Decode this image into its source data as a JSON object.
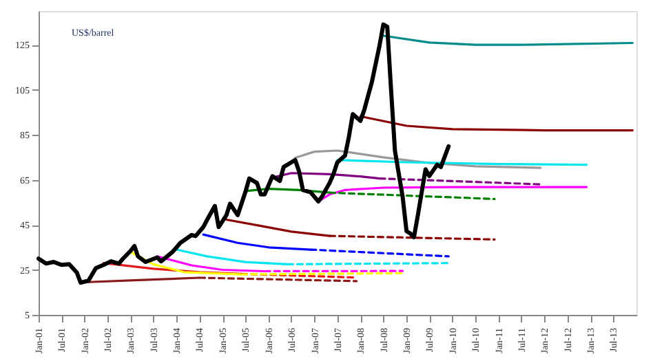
{
  "chart_data": {
    "type": "line",
    "annotations": [
      "US$/barrel"
    ],
    "xlim": [
      "2001-01",
      "2014-01"
    ],
    "ylim": [
      5,
      140
    ],
    "xticks": [
      {
        "value": "2001-01",
        "label": "Jan-01"
      },
      {
        "value": "2001-07",
        "label": "Jul-01"
      },
      {
        "value": "2002-01",
        "label": "Jan-02"
      },
      {
        "value": "2002-07",
        "label": "Jul-02"
      },
      {
        "value": "2003-01",
        "label": "Jan-03"
      },
      {
        "value": "2003-07",
        "label": "Jul-03"
      },
      {
        "value": "2004-01",
        "label": "Jan-04"
      },
      {
        "value": "2004-07",
        "label": "Jul-04"
      },
      {
        "value": "2005-01",
        "label": "Jan-05"
      },
      {
        "value": "2005-07",
        "label": "Jul-05"
      },
      {
        "value": "2006-01",
        "label": "Jan-06"
      },
      {
        "value": "2006-07",
        "label": "Jul-06"
      },
      {
        "value": "2007-01",
        "label": "Jan-07"
      },
      {
        "value": "2007-07",
        "label": "Jul-07"
      },
      {
        "value": "2008-01",
        "label": "Jan-08"
      },
      {
        "value": "2008-07",
        "label": "Jul-08"
      },
      {
        "value": "2009-01",
        "label": "Jan-09"
      },
      {
        "value": "2009-07",
        "label": "Jul-09"
      },
      {
        "value": "2010-01",
        "label": "Jan-10"
      },
      {
        "value": "2010-07",
        "label": "Jul-10"
      },
      {
        "value": "2011-01",
        "label": "Jan-11"
      },
      {
        "value": "2011-07",
        "label": "Jul-11"
      },
      {
        "value": "2012-01",
        "label": "Jan-12"
      },
      {
        "value": "2012-07",
        "label": "Jul-12"
      },
      {
        "value": "2013-01",
        "label": "Jan-13"
      },
      {
        "value": "2013-07",
        "label": "Jul-13"
      }
    ],
    "yticks": [
      5,
      25,
      45,
      65,
      85,
      105,
      125
    ],
    "grid": false,
    "marker": "none",
    "series": [
      {
        "color": "#8b1a1a",
        "x": [
          "2002-01",
          "2003-01",
          "2004-07"
        ],
        "values": [
          19.5,
          20.3,
          21.5
        ]
      },
      {
        "color": "#e31a1c",
        "x": [
          "2002-06",
          "2003-07",
          "2004-07",
          "2005-06"
        ],
        "values": [
          28,
          25.5,
          24,
          23.2
        ]
      },
      {
        "color": "#ffff00",
        "x": [
          "2003-01",
          "2003-07",
          "2004-03",
          "2005-06"
        ],
        "values": [
          33,
          27.5,
          24,
          23
        ]
      },
      {
        "color": "#ff00ff",
        "x": [
          "2003-08",
          "2004-05",
          "2005-01",
          "2005-12"
        ],
        "values": [
          31,
          27,
          25,
          24.4
        ]
      },
      {
        "color": "#00e5ee",
        "x": [
          "2004-01",
          "2004-09",
          "2005-07",
          "2006-06"
        ],
        "values": [
          34,
          31,
          28.5,
          27.5
        ]
      },
      {
        "color": "#0000ff",
        "x": [
          "2004-08",
          "2005-05",
          "2006-01",
          "2006-12"
        ],
        "values": [
          40.7,
          37,
          35,
          34
        ]
      },
      {
        "color": "#8b0000",
        "x": [
          "2005-02",
          "2005-11",
          "2006-07",
          "2007-05"
        ],
        "values": [
          47.3,
          44.5,
          42,
          40.1
        ]
      },
      {
        "color": "#008000",
        "x": [
          "2005-07",
          "2006-01",
          "2006-09",
          "2007-05"
        ],
        "values": [
          60,
          61,
          60.5,
          59.3
        ]
      },
      {
        "color": "#800080",
        "x": [
          "2006-02",
          "2006-07",
          "2007-05",
          "2008-01",
          "2008-06"
        ],
        "values": [
          66,
          68,
          67.5,
          66.5,
          65.6
        ]
      },
      {
        "color": "#999999",
        "x": [
          "2006-08",
          "2007-01",
          "2007-07",
          "2008-07",
          "2009-07",
          "2010-07",
          "2011-12"
        ],
        "values": [
          74.8,
          77.5,
          78,
          75,
          72.5,
          71,
          70.3
        ]
      },
      {
        "color": "#ff00ff",
        "x": [
          "2007-02",
          "2007-05",
          "2007-09",
          "2008-07",
          "2010-01",
          "2012-12"
        ],
        "values": [
          55.4,
          58.5,
          60.5,
          61.5,
          61.8,
          61.8
        ]
      },
      {
        "color": "#00e5ee",
        "x": [
          "2007-07",
          "2009-01",
          "2011-01",
          "2012-12"
        ],
        "values": [
          73.8,
          72.8,
          72,
          71.7
        ]
      },
      {
        "color": "#8b0000",
        "x": [
          "2008-01",
          "2009-01",
          "2010-01",
          "2012-01",
          "2013-12"
        ],
        "values": [
          93.2,
          89,
          87.5,
          87,
          87
        ]
      },
      {
        "color": "#008b8b",
        "x": [
          "2008-07",
          "2009-07",
          "2010-07",
          "2011-07",
          "2013-12"
        ],
        "values": [
          129,
          126,
          125,
          125,
          125.8
        ]
      },
      {
        "color": "#8b1a1a",
        "line_style": "dashed",
        "x": [
          "2004-07",
          "2007-12"
        ],
        "values": [
          21.5,
          20
        ]
      },
      {
        "color": "#e31a1c",
        "line_style": "dashed",
        "x": [
          "2005-06",
          "2007-12"
        ],
        "values": [
          23.2,
          21.6
        ]
      },
      {
        "color": "#ffff00",
        "line_style": "dashed",
        "x": [
          "2005-06",
          "2008-12"
        ],
        "values": [
          23,
          23.5
        ]
      },
      {
        "color": "#ff00ff",
        "line_style": "dashed",
        "x": [
          "2005-12",
          "2008-12"
        ],
        "values": [
          24.4,
          24.5
        ]
      },
      {
        "color": "#00e5ee",
        "line_style": "dashed",
        "x": [
          "2006-06",
          "2009-12"
        ],
        "values": [
          27.5,
          28
        ]
      },
      {
        "color": "#0000ff",
        "line_style": "dashed",
        "x": [
          "2006-12",
          "2009-12"
        ],
        "values": [
          34,
          31
        ]
      },
      {
        "color": "#8b0000",
        "line_style": "dashed",
        "x": [
          "2007-05",
          "2010-12"
        ],
        "values": [
          40.1,
          38.5
        ]
      },
      {
        "color": "#008000",
        "line_style": "dashed",
        "x": [
          "2007-05",
          "2010-12"
        ],
        "values": [
          59.3,
          56.5
        ]
      },
      {
        "color": "#800080",
        "line_style": "dashed",
        "x": [
          "2008-06",
          "2011-12"
        ],
        "values": [
          65.6,
          63
        ]
      },
      {
        "color": "#000000",
        "x": [
          "2001-01",
          "2001-03",
          "2001-05",
          "2001-07",
          "2001-09",
          "2001-11",
          "2001-12",
          "2002-02",
          "2002-04",
          "2002-06",
          "2002-08",
          "2002-10",
          "2002-11",
          "2003-01",
          "2003-02",
          "2003-03",
          "2003-05",
          "2003-08",
          "2003-09",
          "2003-12",
          "2004-02",
          "2004-05",
          "2004-06",
          "2004-08",
          "2004-09",
          "2004-11",
          "2004-12",
          "2005-02",
          "2005-03",
          "2005-05",
          "2005-07",
          "2005-08",
          "2005-10",
          "2005-11",
          "2005-12",
          "2006-02",
          "2006-04",
          "2006-05",
          "2006-08",
          "2006-09",
          "2006-10",
          "2006-12",
          "2007-02",
          "2007-03",
          "2007-05",
          "2007-06",
          "2007-07",
          "2007-09",
          "2007-10",
          "2007-11",
          "2008-01",
          "2008-02",
          "2008-04",
          "2008-06",
          "2008-07",
          "2008-08",
          "2008-09",
          "2008-10",
          "2008-12",
          "2009-01",
          "2009-02",
          "2009-03",
          "2009-04",
          "2009-06",
          "2009-07",
          "2009-09",
          "2009-10",
          "2009-12"
        ],
        "values": [
          30,
          27.8,
          28.5,
          27.2,
          27.5,
          23.8,
          19.3,
          20.2,
          25.8,
          27.2,
          28.8,
          27.8,
          29.9,
          33.4,
          35.6,
          31,
          28.5,
          30.5,
          28.8,
          33,
          37,
          40.5,
          40,
          44,
          47.3,
          53.4,
          44,
          49.3,
          54.4,
          49.3,
          59.5,
          65.6,
          63.6,
          58.5,
          58.5,
          66.6,
          64.5,
          70.7,
          73.8,
          68.7,
          60.5,
          59.5,
          55.4,
          57.5,
          63.6,
          67.6,
          72.7,
          75.8,
          84,
          94.2,
          91.2,
          96.2,
          108.5,
          124.8,
          134,
          133,
          104.4,
          77.9,
          57.5,
          42.2,
          41.1,
          39.5,
          49.3,
          69.7,
          66.7,
          71.7,
          70.7,
          79.9
        ]
      }
    ]
  }
}
